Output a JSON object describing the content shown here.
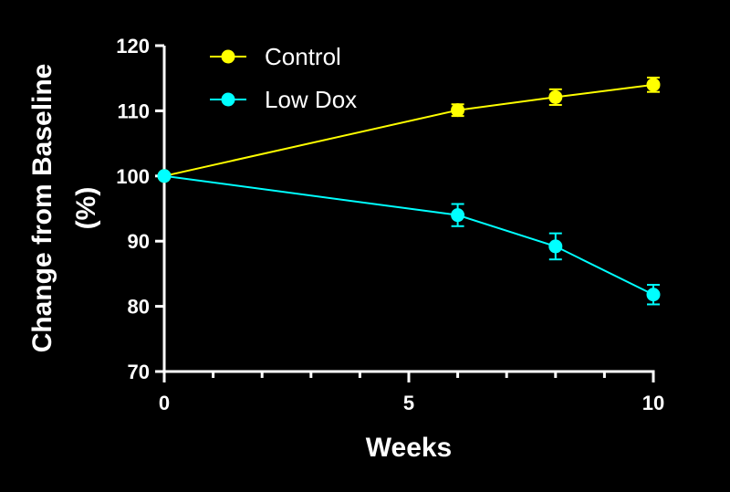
{
  "chart_data": {
    "type": "line",
    "title": "",
    "xlabel": "Weeks",
    "ylabel_line1": "Change from Baseline",
    "ylabel_line2": "(%)",
    "xlim": [
      0,
      10
    ],
    "ylim": [
      70,
      120
    ],
    "xticks": [
      0,
      5,
      10
    ],
    "xminor_ticks": [
      1,
      2,
      3,
      4,
      6,
      7,
      8,
      9
    ],
    "yticks": [
      70,
      80,
      90,
      100,
      110,
      120
    ],
    "grid": false,
    "legend_placement": "top-left",
    "background": "#000000",
    "series": [
      {
        "name": "Control",
        "color": "#ffff00",
        "x": [
          0,
          6,
          8,
          10
        ],
        "y": [
          100,
          110.1,
          112.1,
          114.0
        ],
        "err": [
          0,
          0.9,
          1.2,
          1.1
        ]
      },
      {
        "name": "Low Dox",
        "color": "#00ffff",
        "x": [
          0,
          6,
          8,
          10
        ],
        "y": [
          100,
          94.0,
          89.2,
          81.8
        ],
        "err": [
          0,
          1.7,
          2.0,
          1.5
        ]
      }
    ]
  }
}
